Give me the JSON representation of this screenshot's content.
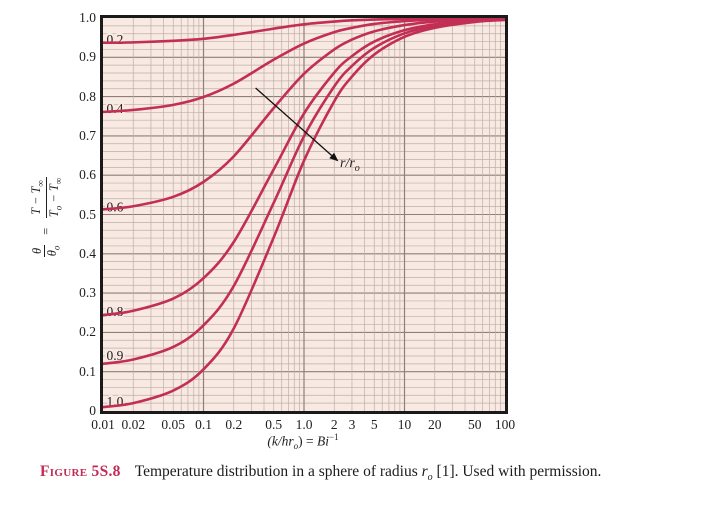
{
  "figure": {
    "label_word": "Figure",
    "label_num": "5S.8",
    "caption_before": "Temperature distribution in a sphere of radius ",
    "caption_math_base": "r",
    "caption_math_sub": "o",
    "caption_after": " [1]. Used with permission."
  },
  "axes": {
    "x_label": {
      "part1": "(k/hr",
      "sub1": "o",
      "part2": ") = ",
      "part3": "Bi",
      "sup1": "−1"
    },
    "y_label": {
      "f1_num": "θ",
      "f1_den_base": "θ",
      "f1_den_sub": "o",
      "eq": "=",
      "f2_num_base": "T − T",
      "f2_num_sub": "∞",
      "f2_den_base1": "T",
      "f2_den_sub1": "o",
      "f2_den_base2": " − T",
      "f2_den_sub2": "∞"
    }
  },
  "chart_data": {
    "type": "line",
    "x_scale": "log",
    "x_range": [
      0.01,
      100
    ],
    "y_range": [
      0,
      1
    ],
    "grid": "log minor x per decade; y minor step 0.02, major 0.1",
    "legend": "none",
    "x_tick_values": [
      0.01,
      0.02,
      0.05,
      0.1,
      0.2,
      0.5,
      1,
      2,
      3,
      5,
      10,
      20,
      50,
      100
    ],
    "x_tick_labels": [
      "0.01",
      "0.02",
      "0.05",
      "0.1",
      "0.2",
      "0.5",
      "1.0",
      "2",
      "3",
      "5",
      "10",
      "20",
      "50",
      "100"
    ],
    "y_tick_values": [
      1,
      0.9,
      0.8,
      0.7,
      0.6,
      0.5,
      0.4,
      0.3,
      0.2,
      0.1,
      0
    ],
    "y_tick_labels": [
      "1.0",
      "0.9",
      "0.8",
      "0.7",
      "0.6",
      "0.5",
      "0.4",
      "0.3",
      "0.2",
      "0.1",
      "0"
    ],
    "x": [
      0.01,
      0.02,
      0.05,
      0.1,
      0.2,
      0.5,
      1,
      2,
      3,
      5,
      10,
      20,
      50,
      100
    ],
    "series": [
      {
        "label": "0.2",
        "r_over_ro": 0.2,
        "label_dy": -2,
        "values": [
          0.937,
          0.938,
          0.942,
          0.947,
          0.957,
          0.973,
          0.984,
          0.991,
          0.994,
          0.996,
          0.998,
          0.999,
          1.0,
          1.0
        ]
      },
      {
        "label": "0.4",
        "r_over_ro": 0.4,
        "label_dy": -2,
        "values": [
          0.761,
          0.766,
          0.779,
          0.799,
          0.833,
          0.894,
          0.935,
          0.964,
          0.975,
          0.985,
          0.992,
          0.996,
          0.998,
          0.999
        ]
      },
      {
        "label": "0.6",
        "r_over_ro": 0.6,
        "label_dy": -1,
        "values": [
          0.513,
          0.521,
          0.545,
          0.583,
          0.648,
          0.771,
          0.858,
          0.92,
          0.945,
          0.966,
          0.982,
          0.991,
          0.996,
          0.998
        ]
      },
      {
        "label": "0.8",
        "r_over_ro": 0.8,
        "label_dy": -2,
        "values": [
          0.244,
          0.255,
          0.286,
          0.338,
          0.43,
          0.615,
          0.757,
          0.861,
          0.903,
          0.94,
          0.969,
          0.984,
          0.994,
          0.997
        ]
      },
      {
        "label": "0.9",
        "r_over_ro": 0.9,
        "label_dy": -7,
        "values": [
          0.12,
          0.131,
          0.163,
          0.218,
          0.318,
          0.53,
          0.699,
          0.826,
          0.878,
          0.924,
          0.961,
          0.98,
          0.992,
          0.996
        ]
      },
      {
        "label": "1.0",
        "r_over_ro": 1.0,
        "label_dy": -4,
        "values": [
          0.01,
          0.02,
          0.052,
          0.106,
          0.21,
          0.442,
          0.637,
          0.788,
          0.851,
          0.907,
          0.952,
          0.975,
          0.99,
          0.995
        ]
      }
    ],
    "annotation": {
      "label": "r/r",
      "label_sub": "o",
      "arrow_from_x": 0.33,
      "arrow_from_y": 0.822,
      "arrow_to_x": 2.2,
      "arrow_to_y": 0.635
    },
    "colors": {
      "curve": "#c22e54",
      "plot_bg": "#f8e9e3",
      "grid_minor": "#c0aea8",
      "grid_major": "#8f7f79",
      "border": "#1a1a1a",
      "figure_label": "#c22b57",
      "text": "#1f1f1f"
    }
  }
}
